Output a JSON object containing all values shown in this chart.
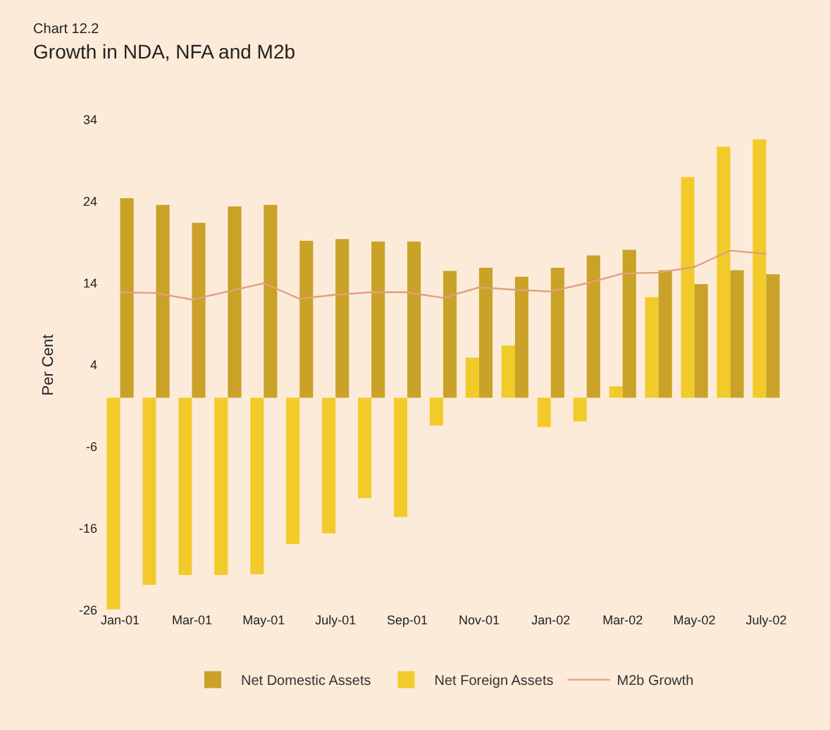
{
  "chart_data": {
    "type": "bar",
    "title": "Chart 12.2",
    "subtitle": "Growth in NDA, NFA and M2b",
    "ylabel": "Per Cent",
    "categories": [
      "Jan-01",
      null,
      "Mar-01",
      null,
      "May-01",
      null,
      "July-01",
      null,
      "Sep-01",
      null,
      "Nov-01",
      null,
      "Jan-02",
      null,
      "Mar-02",
      null,
      "May-02",
      null,
      "July-02"
    ],
    "series": [
      {
        "name": "Net Domestic Assets",
        "color": "#c9a227",
        "values": [
          24.4,
          23.6,
          21.4,
          23.4,
          23.6,
          19.2,
          19.4,
          19.1,
          19.1,
          15.5,
          15.9,
          14.8,
          15.9,
          17.4,
          18.1,
          15.6,
          13.9,
          15.6,
          15.1
        ]
      },
      {
        "name": "Net Foreign Assets",
        "color": "#f2cb2a",
        "values": [
          -25.9,
          -22.9,
          -21.7,
          -21.7,
          -21.6,
          -17.9,
          -16.6,
          -12.3,
          -14.6,
          -3.4,
          4.9,
          6.4,
          -3.6,
          -2.9,
          1.4,
          12.3,
          27,
          30.7,
          31.6
        ]
      },
      {
        "name": "M2b Growth",
        "type": "line",
        "color": "#e0a080",
        "values": [
          12.9,
          12.8,
          12.0,
          13.0,
          14.0,
          12.1,
          12.6,
          12.9,
          12.9,
          12.2,
          13.5,
          13.2,
          13.0,
          14.0,
          15.2,
          15.3,
          16.0,
          18.0,
          17.6
        ]
      }
    ],
    "ylim": [
      -26,
      34
    ],
    "yticks": [
      34,
      24,
      14,
      4,
      -6,
      -16,
      -26
    ],
    "grid": false,
    "legend": "bottom",
    "marker": "none"
  }
}
